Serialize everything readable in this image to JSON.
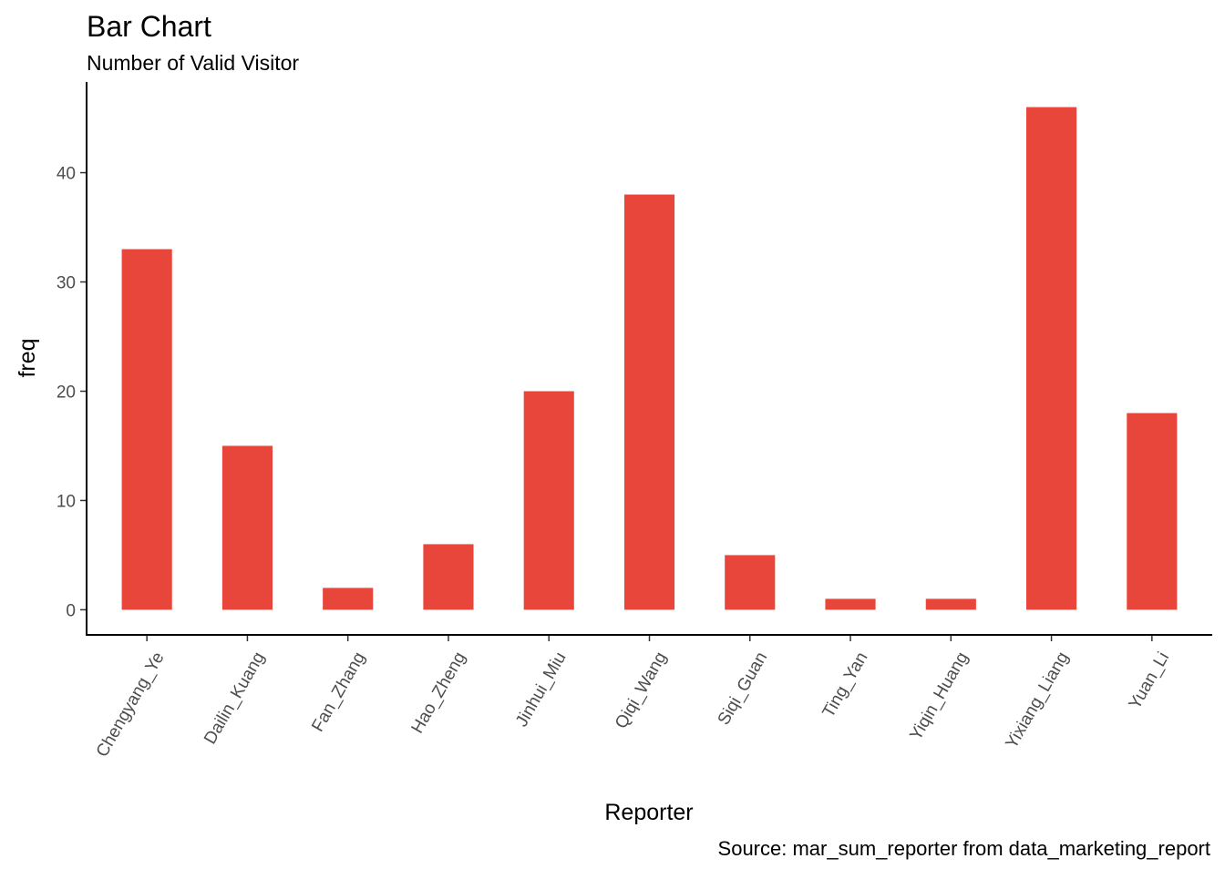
{
  "chart_data": {
    "type": "bar",
    "title": "Bar Chart",
    "subtitle": "Number of Valid Visitor",
    "xlabel": "Reporter",
    "ylabel": "freq",
    "caption": "Source: mar_sum_reporter from data_marketing_report",
    "categories": [
      "Chengyang_Ye",
      "Dailin_Kuang",
      "Fan_Zhang",
      "Hao_Zheng",
      "Jinhui_Miu",
      "Qiqi_Wang",
      "Siqi_Guan",
      "Ting_Yan",
      "Yiqin_Huang",
      "Yixiang_Liang",
      "Yuan_Li"
    ],
    "values": [
      33,
      15,
      2,
      6,
      20,
      38,
      5,
      1,
      1,
      46,
      18
    ],
    "yticks": [
      0,
      10,
      20,
      30,
      40
    ],
    "ylim": [
      -2.3,
      48.3
    ],
    "bar_color": "#e8463a",
    "grid": false,
    "legend": "none"
  }
}
